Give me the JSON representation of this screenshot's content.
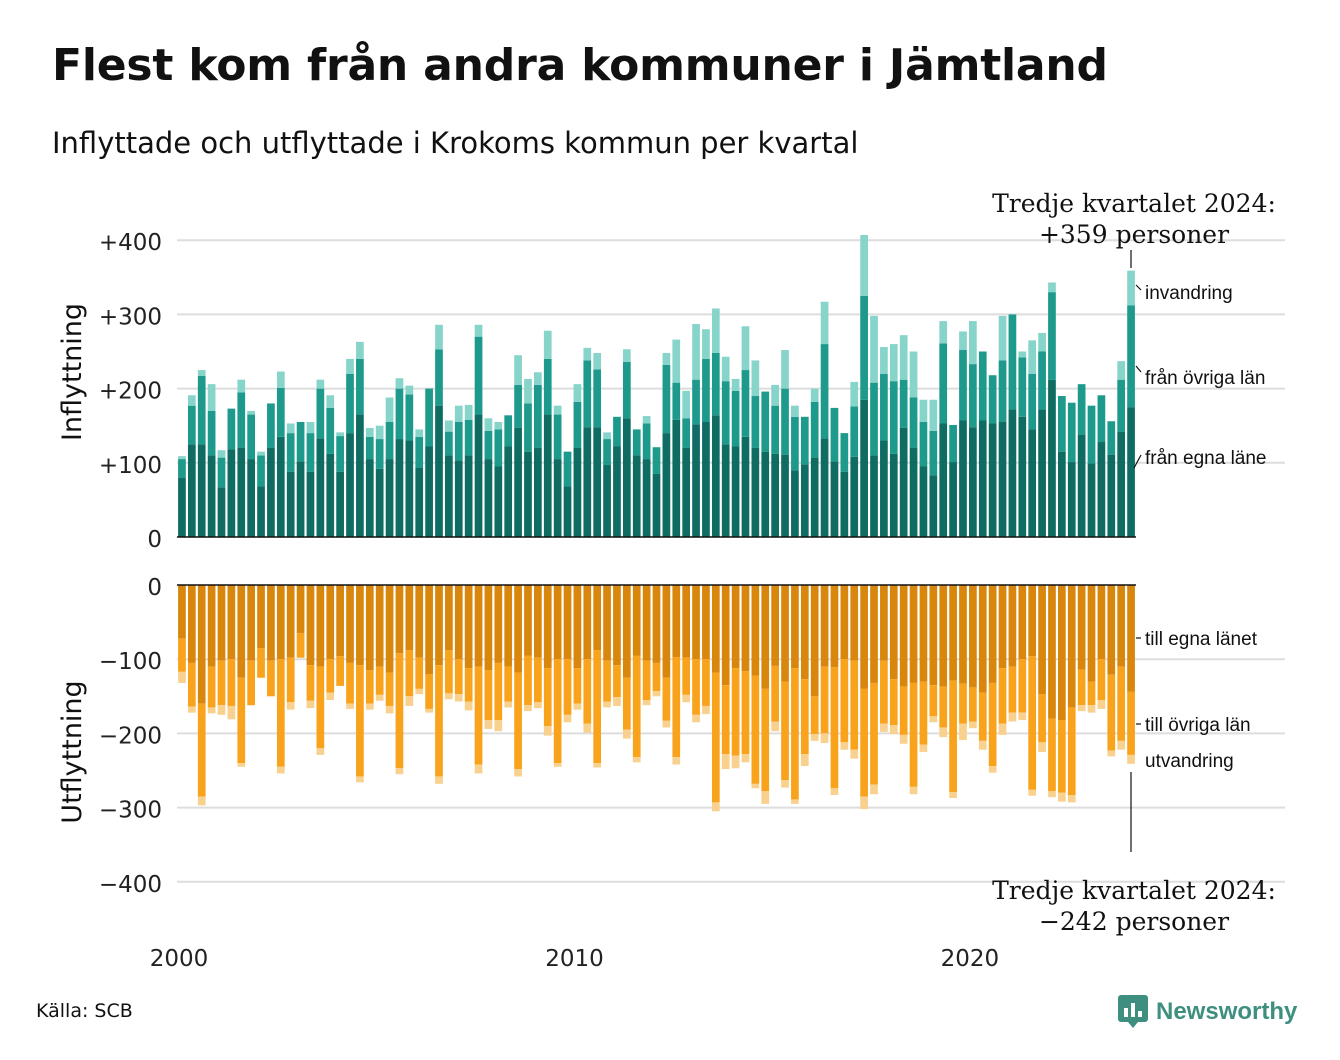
{
  "title": "Flest kom från andra kommuner i Jämtland",
  "subtitle": "Inflyttade och utflyttade i Krokoms kommun per kvartal",
  "source": "Källa: SCB",
  "brand": "Newsworthy",
  "colors": {
    "in_own": "#0e6c63",
    "in_other": "#1d9a8b",
    "in_immigration": "#87d4ca",
    "out_own": "#d9860d",
    "out_other": "#f9a21c",
    "out_emigration": "#f8d18e",
    "brand": "#3f8f80"
  },
  "chart_data": {
    "type": "bar",
    "stacked": true,
    "x_start": "2000 Q1",
    "x_end": "2024 Q3",
    "x_ticks": [
      "2000",
      "2010",
      "2020"
    ],
    "top_panel": {
      "ylabel": "Inflyttning",
      "ylim": [
        0,
        400
      ],
      "y_ticks": [
        "0",
        "+100",
        "+200",
        "+300",
        "+400"
      ],
      "legend": [
        "invandring",
        "från övriga län",
        "från egna läne"
      ],
      "annotation": [
        "Tredje kvartalet 2024:",
        "+359 personer"
      ],
      "series": [
        {
          "name": "från egna läne",
          "values": [
            80,
            125,
            125,
            110,
            67,
            118,
            120,
            105,
            68,
            120,
            135,
            88,
            102,
            88,
            133,
            112,
            88,
            140,
            165,
            105,
            92,
            105,
            132,
            130,
            93,
            122,
            177,
            110,
            103,
            110,
            165,
            105,
            95,
            122,
            147,
            115,
            120,
            165,
            105,
            68,
            120,
            148,
            148,
            97,
            122,
            160,
            110,
            105,
            85,
            140,
            158,
            120,
            152,
            155,
            164,
            125,
            122,
            135,
            120,
            115,
            112,
            111,
            90,
            98,
            107,
            133,
            102,
            88,
            108,
            185,
            110,
            130,
            112,
            147,
            120,
            95,
            83,
            153,
            101,
            157,
            148,
            157,
            153,
            155,
            172,
            162,
            145,
            172,
            212,
            115,
            101,
            138,
            99,
            128,
            111,
            142,
            175
          ]
        },
        {
          "name": "från övriga län",
          "values": [
            25,
            52,
            92,
            60,
            40,
            55,
            75,
            60,
            42,
            60,
            66,
            52,
            53,
            52,
            67,
            62,
            48,
            80,
            75,
            30,
            40,
            50,
            68,
            62,
            42,
            78,
            76,
            32,
            52,
            48,
            105,
            38,
            50,
            42,
            58,
            65,
            85,
            75,
            60,
            47,
            62,
            90,
            78,
            35,
            40,
            76,
            35,
            48,
            36,
            92,
            50,
            40,
            60,
            85,
            84,
            85,
            75,
            90,
            70,
            81,
            65,
            89,
            72,
            64,
            75,
            127,
            72,
            52,
            68,
            140,
            98,
            90,
            98,
            65,
            68,
            60,
            60,
            108,
            50,
            95,
            85,
            93,
            65,
            83,
            128,
            80,
            75,
            78,
            118,
            75,
            80,
            68,
            78,
            63,
            45,
            70,
            137
          ]
        },
        {
          "name": "invandring",
          "values": [
            4,
            14,
            8,
            36,
            10,
            0,
            17,
            5,
            5,
            0,
            22,
            13,
            0,
            15,
            12,
            17,
            5,
            20,
            23,
            12,
            18,
            33,
            14,
            12,
            10,
            0,
            33,
            15,
            22,
            20,
            16,
            17,
            10,
            0,
            40,
            33,
            17,
            38,
            12,
            0,
            24,
            17,
            22,
            9,
            0,
            17,
            0,
            10,
            0,
            16,
            58,
            37,
            75,
            40,
            60,
            33,
            16,
            59,
            48,
            0,
            28,
            52,
            15,
            0,
            18,
            57,
            0,
            0,
            33,
            82,
            90,
            36,
            50,
            60,
            62,
            30,
            42,
            30,
            0,
            25,
            58,
            0,
            0,
            60,
            0,
            8,
            45,
            25,
            13,
            0,
            0,
            0,
            0,
            0,
            0,
            25,
            47
          ]
        }
      ]
    },
    "bottom_panel": {
      "ylabel": "Utflyttning",
      "ylim": [
        -400,
        0
      ],
      "y_ticks": [
        "0",
        "−100",
        "−200",
        "−300",
        "−400"
      ],
      "legend": [
        "till egna länet",
        "till övriga län",
        "utvandring"
      ],
      "annotation": [
        "Tredje kvartalet 2024:",
        "−242 personer"
      ],
      "series": [
        {
          "name": "till egna länet",
          "values": [
            -72,
            -105,
            -160,
            -110,
            -102,
            -100,
            -125,
            -102,
            -85,
            -102,
            -100,
            -98,
            -65,
            -108,
            -110,
            -100,
            -96,
            -105,
            -108,
            -115,
            -110,
            -118,
            -92,
            -88,
            -98,
            -120,
            -108,
            -88,
            -100,
            -112,
            -110,
            -115,
            -105,
            -110,
            -118,
            -95,
            -98,
            -112,
            -100,
            -100,
            -112,
            -100,
            -88,
            -102,
            -108,
            -125,
            -95,
            -102,
            -105,
            -125,
            -97,
            -98,
            -100,
            -100,
            -118,
            -135,
            -112,
            -116,
            -122,
            -140,
            -109,
            -130,
            -112,
            -127,
            -150,
            -110,
            -111,
            -100,
            -102,
            -140,
            -132,
            -102,
            -127,
            -137,
            -132,
            -130,
            -135,
            -137,
            -129,
            -133,
            -138,
            -145,
            -132,
            -112,
            -110,
            -100,
            -96,
            -147,
            -180,
            -182,
            -165,
            -114,
            -130,
            -100,
            -121,
            -110,
            -144
          ]
        },
        {
          "name": "till övriga län",
          "values": [
            -45,
            -59,
            -125,
            -55,
            -60,
            -63,
            -115,
            -60,
            -40,
            -48,
            -145,
            -60,
            -33,
            -48,
            -110,
            -45,
            -40,
            -55,
            -150,
            -45,
            -38,
            -45,
            -155,
            -62,
            -42,
            -47,
            -150,
            -58,
            -47,
            -45,
            -132,
            -67,
            -77,
            -47,
            -130,
            -67,
            -60,
            -78,
            -140,
            -75,
            -48,
            -87,
            -152,
            -55,
            -43,
            -70,
            -137,
            -53,
            -38,
            -58,
            -135,
            -50,
            -75,
            -63,
            -175,
            -93,
            -118,
            -112,
            -146,
            -138,
            -75,
            -133,
            -177,
            -101,
            -51,
            -90,
            -163,
            -112,
            -120,
            -145,
            -137,
            -85,
            -62,
            -65,
            -140,
            -85,
            -42,
            -55,
            -150,
            -54,
            -46,
            -65,
            -112,
            -75,
            -62,
            -72,
            -180,
            -65,
            -98,
            -98,
            -118,
            -48,
            -32,
            -55,
            -102,
            -100,
            -85
          ]
        },
        {
          "name": "utvandring",
          "values": [
            -15,
            -8,
            -12,
            -8,
            -13,
            -18,
            -5,
            0,
            0,
            0,
            -9,
            -10,
            0,
            -10,
            -9,
            -10,
            0,
            -7,
            -8,
            -8,
            -8,
            -10,
            -8,
            -13,
            -7,
            -5,
            -10,
            -8,
            -10,
            -12,
            -12,
            -12,
            -15,
            -8,
            -10,
            -8,
            -8,
            -13,
            -5,
            -10,
            -8,
            -12,
            -6,
            -8,
            -12,
            -12,
            -7,
            -7,
            -7,
            -9,
            -10,
            -10,
            -10,
            -11,
            -12,
            -20,
            -17,
            -11,
            -6,
            -17,
            -13,
            -10,
            -6,
            -16,
            -9,
            -13,
            -9,
            -10,
            -12,
            -17,
            -13,
            -11,
            -12,
            -12,
            -10,
            -10,
            -8,
            -13,
            -8,
            -22,
            -9,
            -12,
            -9,
            -15,
            -12,
            -10,
            -8,
            -13,
            -8,
            -12,
            -10,
            -8,
            -10,
            -12,
            -8,
            -12,
            -12
          ]
        }
      ]
    }
  }
}
